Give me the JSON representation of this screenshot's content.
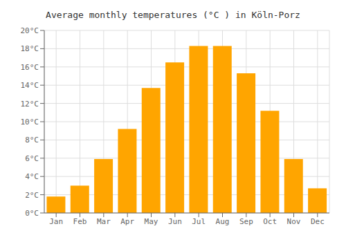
{
  "chart_data": {
    "type": "bar",
    "title": "Average monthly temperatures (°C ) in Köln-Porz",
    "categories": [
      "Jan",
      "Feb",
      "Mar",
      "Apr",
      "May",
      "Jun",
      "Jul",
      "Aug",
      "Sep",
      "Oct",
      "Nov",
      "Dec"
    ],
    "values": [
      1.8,
      3.0,
      5.9,
      9.2,
      13.7,
      16.5,
      18.3,
      18.3,
      15.3,
      11.2,
      5.9,
      2.7
    ],
    "color": "#FFA500",
    "ylim": [
      0,
      20
    ],
    "yticks": [
      {
        "value": 0,
        "label": "0°C"
      },
      {
        "value": 2,
        "label": "2°C"
      },
      {
        "value": 4,
        "label": "4°C"
      },
      {
        "value": 6,
        "label": "6°C"
      },
      {
        "value": 8,
        "label": "8°C"
      },
      {
        "value": 10,
        "label": "10°C"
      },
      {
        "value": 12,
        "label": "12°C"
      },
      {
        "value": 14,
        "label": "14°C"
      },
      {
        "value": 16,
        "label": "16°C"
      },
      {
        "value": 18,
        "label": "18°C"
      },
      {
        "value": 20,
        "label": "20°C"
      }
    ],
    "grid": true
  }
}
